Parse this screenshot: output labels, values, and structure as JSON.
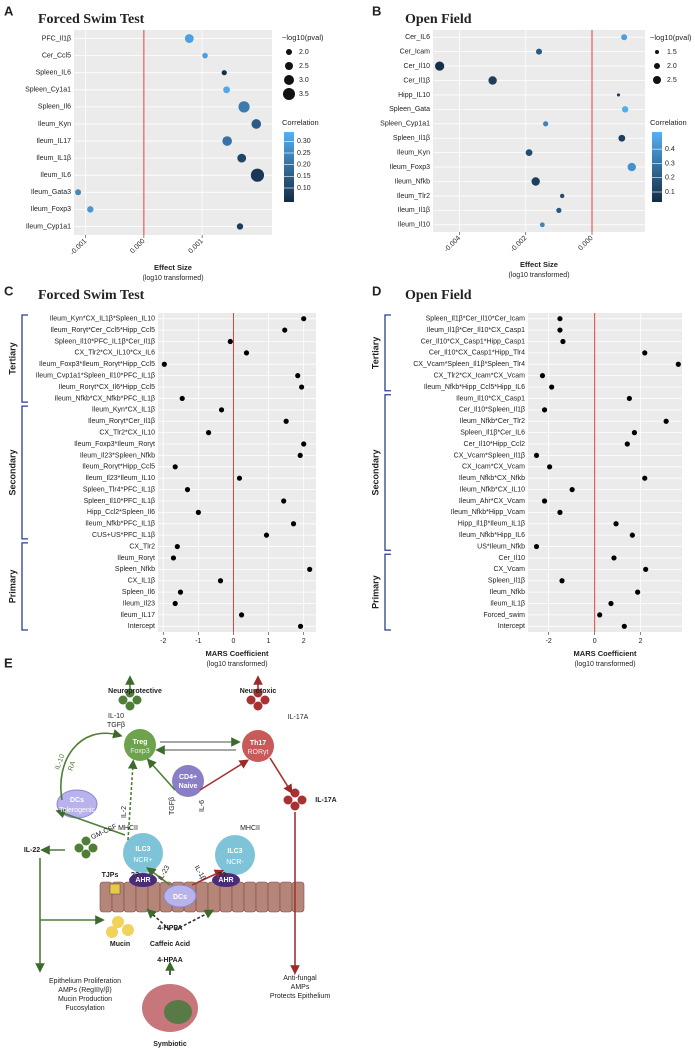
{
  "chart_data": [
    {
      "type": "bubble",
      "panel": "A",
      "title": "Forced  Swim Test",
      "categories": [
        "PFC_Il1β",
        "Cer_Ccl5",
        "Spleen_IL6",
        "Spleen_Cy1a1",
        "Spleen_Il6",
        "Ileum_Kyn",
        "Ileum_IL17",
        "Ileum_IL1β",
        "Ileum_IL6",
        "Ileum_Gata3",
        "Ileum_Foxp3",
        "Ileum_Cyp1a1"
      ],
      "values": [
        0.00078,
        0.00105,
        0.00138,
        0.00142,
        0.00172,
        0.00193,
        0.00143,
        0.00168,
        0.00195,
        -0.00113,
        -0.00092,
        0.00165
      ],
      "sizes": [
        2.7,
        1.9,
        1.8,
        2.2,
        3.3,
        2.9,
        2.9,
        2.7,
        3.8,
        2.0,
        2.1,
        2.1
      ],
      "correlation": [
        0.3,
        0.3,
        0.05,
        0.32,
        0.22,
        0.15,
        0.2,
        0.1,
        0.07,
        0.25,
        0.28,
        0.08
      ],
      "xlim": [
        -0.0012,
        0.0022
      ],
      "xticks": [
        -0.001,
        {
          "value": 0,
          "label": "0.000"
        },
        0.001
      ],
      "xlabel": "Effect Size",
      "xlabel_note": "(log10 transformed)",
      "size_title": "−log10(pval)",
      "size_ticks": [
        {
          "value": 2,
          "label": "2.0"
        },
        2.5,
        {
          "value": 3,
          "label": "3.0"
        },
        3.5
      ],
      "color_title": "Correlation",
      "clim": [
        0.04,
        0.34
      ],
      "colorscale": [
        "#132B43",
        "#56B1F7"
      ],
      "color_ticks": [
        {
          "value": 0.1,
          "label": "0.10"
        },
        0.15,
        {
          "value": 0.2,
          "label": "0.20"
        },
        0.25,
        {
          "value": 0.3,
          "label": "0.30"
        }
      ]
    },
    {
      "type": "bubble",
      "panel": "B",
      "title": "Open Field",
      "categories": [
        "Cer_IL6",
        "Cer_Icam",
        "Cer_Il10",
        "Cer_Il1β",
        "Hipp_IL10",
        "Spleen_Gata",
        "Spleen_Cyp1a1",
        "Spleen_Il1β",
        "Ileum_Kyn",
        "Ileum_Foxp3",
        "Ileum_Nfkb",
        "Ileum_Tlr2",
        "Ileum_Il1β",
        "Ileum_Il10"
      ],
      "values": [
        0.00097,
        -0.0016,
        -0.0046,
        -0.003,
        0.0008,
        0.001,
        -0.0014,
        0.0009,
        -0.0019,
        0.0012,
        -0.0017,
        -0.0009,
        -0.001,
        -0.0015
      ],
      "sizes": [
        2.0,
        2.0,
        2.8,
        2.6,
        1.3,
        2.1,
        1.8,
        2.2,
        2.2,
        2.6,
        2.6,
        1.6,
        1.8,
        1.7
      ],
      "correlation": [
        0.45,
        0.2,
        0.05,
        0.1,
        0.1,
        0.5,
        0.35,
        0.1,
        0.15,
        0.4,
        0.1,
        0.15,
        0.2,
        0.35
      ],
      "xlim": [
        -0.0048,
        0.0016
      ],
      "xticks": [
        -0.004,
        -0.002,
        {
          "value": 0,
          "label": "0.000"
        }
      ],
      "xlabel": "Effect Size",
      "xlabel_note": "(log10 transformed)",
      "size_title": "−log10(pval)",
      "size_ticks": [
        1.5,
        {
          "value": 2,
          "label": "2.0"
        },
        2.5
      ],
      "color_title": "Correlation",
      "clim": [
        0.03,
        0.52
      ],
      "colorscale": [
        "#132B43",
        "#56B1F7"
      ],
      "color_ticks": [
        0.1,
        0.2,
        0.3,
        0.4
      ]
    },
    {
      "type": "dot",
      "panel": "C",
      "title": "Forced  Swim Test",
      "color": "#000000",
      "groups": [
        {
          "name": "Tertiary",
          "categories": [
            "Ileum_Kyn*CX_IL1β*Spleen_IL10",
            "Ileum_Rorγt*Cer_Ccl5*Hipp_Ccl5",
            "Spleen_Il10*PFC_IL1β*Cer_Il1β",
            "CX_Tlr2*CX_IL10*Cx_IL6",
            "Ileum_Foxp3*Ileum_Rorγt*Hipp_Ccl5",
            "Ileum_Cvp1a1*Spleen_Il10*PFC_IL1β",
            "Ileum_Rorγt*CX_Il6*Hipp_Ccl5",
            "Ileum_Nfkb*CX_Nfkb*PFC_IL1β"
          ],
          "values": [
            2.0,
            1.46,
            -0.09,
            0.37,
            -1.97,
            1.83,
            1.94,
            -1.46
          ]
        },
        {
          "name": "Secondary",
          "categories": [
            "Ileum_Kyn*CX_IL1β",
            "Ileum_Rorγt*Cer_Il1β",
            "CX_Tlr2*CX_IL10",
            "Ileum_Foxp3*Ileum_Rorγt",
            "Ileum_Il23*Spleen_Nfkb",
            "Ileum_Rorγt*Hipp_Ccl5",
            "Ileum_Il23*Ileum_IL10",
            "Spleen_Tlr4*PFC_IL1β",
            "Spleen_Il10*PFC_IL1β",
            "Hipp_Ccl2*Spleen_Il6",
            "Ileum_Nfkb*PFC_IL1β",
            "CUS+US*PFC_IL1β"
          ],
          "values": [
            -0.34,
            1.5,
            -0.71,
            2.0,
            1.9,
            -1.66,
            0.17,
            -1.31,
            1.43,
            -1.0,
            1.71,
            0.94
          ]
        },
        {
          "name": "Primary",
          "categories": [
            "CX_Tlr2",
            "Ileum_Rorγt",
            "Spleen_Nfkb",
            "CX_IL1β",
            "Spleen_Il6",
            "Ileum_Il23",
            "Ileum_IL17",
            "Intercept"
          ],
          "values": [
            -1.6,
            -1.71,
            2.17,
            -0.37,
            -1.51,
            -1.66,
            0.23,
            1.91
          ]
        }
      ],
      "xlim": [
        -2.15,
        2.35
      ],
      "xticks": [
        -2,
        -1,
        0,
        1,
        2
      ],
      "xlabel": "MARS Coefficient",
      "xlabel_note": "(log10 transformed)"
    },
    {
      "type": "dot",
      "panel": "D",
      "title": "Open Field",
      "color": "#000000",
      "groups": [
        {
          "name": "Tertiary",
          "categories": [
            "Spleen_Il1β*Cer_Il10*Cer_Icam",
            "Ileum_Il1β*Cer_Il10*CX_Casp1",
            "Cer_Il10*CX_Casp1*Hipp_Casp1",
            "Cer_Il10*CX_Casp1*Hipp_Tlr4",
            "CX_Vcam*Spleen_Il1β*Spleen_Tlr4",
            "CX_Tlr2*CX_Icam*CX_Vcam",
            "Ileum_Nfkb*Hipp_Ccl5*Hipp_IL6"
          ],
          "values": [
            -1.51,
            -1.51,
            -1.38,
            2.18,
            3.64,
            -2.27,
            -1.87
          ]
        },
        {
          "name": "Secondary",
          "categories": [
            "Ileum_Il10*CX_Casp1",
            "Cer_Il10*Spleen_Il1β",
            "Ileum_Nfkb*Cer_Tlr2",
            "Spleen_Il1β*Cer_IL6",
            "Cer_Il10*Hipp_Ccl2",
            "CX_Vcam*Spleen_Il1β",
            "CX_Icam*CX_Vcam",
            "Ileum_Nfkb*CX_Nfkb",
            "Ileum_Nfkb*CX_IL10",
            "Ileum_Ahr*CX_Vcam",
            "Ileum_Nfkb*Hipp_Vcam",
            "Hipp_Il1β*Ileum_IL1β",
            "Ileum_Nfkb*Hipp_IL6",
            "US*Ileum_Nfkb"
          ],
          "values": [
            1.51,
            -2.18,
            3.11,
            1.73,
            1.42,
            -2.53,
            -1.96,
            2.18,
            -0.98,
            -2.18,
            -1.51,
            0.93,
            1.64,
            -2.53
          ]
        },
        {
          "name": "Primary",
          "categories": [
            "Cer_Il10",
            "CX_Vcam",
            "Spleen_Il1β",
            "Ileum_Nfkb",
            "Ileum_IL1β",
            "Forced_swim",
            "Intercept"
          ],
          "values": [
            0.84,
            2.22,
            -1.42,
            1.87,
            0.71,
            0.22,
            1.29
          ]
        }
      ],
      "xlim": [
        -2.9,
        3.8
      ],
      "xticks": [
        -2,
        0,
        2
      ],
      "xlabel": "MARS Coefficient",
      "xlabel_note": "(log10 transformed)"
    }
  ],
  "diagram": {
    "panel": "E",
    "texts": [
      "Neuroprotective",
      "Neurotoxic",
      "IL-10",
      "TGFβ",
      "IL-17A",
      "Treg",
      "Foxp3",
      "Th17",
      "RORγt",
      "CD4+",
      "Naive",
      "IL-10",
      "RA",
      "DCs",
      "Tolerogenic",
      "GM-CSF",
      "IL-2",
      "TGFβ",
      "IL-6",
      "IL-17A",
      "MHCII",
      "MHCII",
      "ILC3",
      "NCR+",
      "ILC3",
      "NCR-",
      "AHR",
      "AHR",
      "IL-22",
      "IL-23",
      "IL-1β",
      "DCs",
      "TJPs",
      "??",
      "??",
      "Mucin",
      "4-HPPA",
      "Caffeic Acid",
      "4-HPAA",
      "Symbiotic",
      "Epithelium Proliferation",
      "AMPs (RegIIIγ/β)",
      "Mucin Production",
      "Fucosylation",
      "Anti-fungal",
      "AMPs",
      "Protects Epithelium"
    ]
  }
}
